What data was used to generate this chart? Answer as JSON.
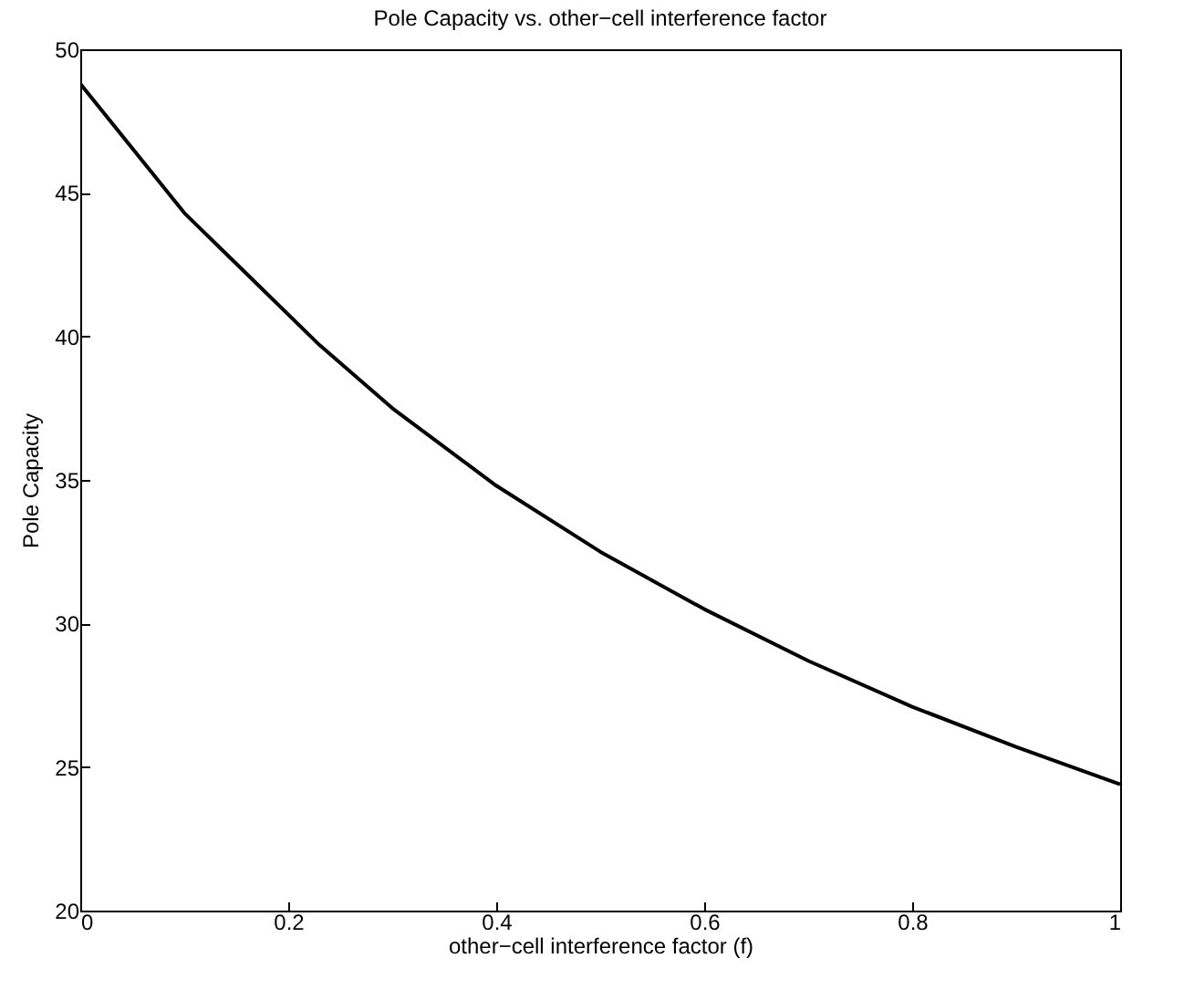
{
  "chart_data": {
    "type": "line",
    "title": "Pole Capacity vs. other−cell interference factor",
    "xlabel": "other−cell interference factor (f)",
    "ylabel": "Pole Capacity",
    "x": [
      0,
      0.1,
      0.23,
      0.3,
      0.4,
      0.5,
      0.6,
      0.7,
      0.8,
      0.9,
      1
    ],
    "series": [
      {
        "color": "#000000",
        "values": [
          48.8,
          44.3,
          39.7,
          37.5,
          34.8,
          32.5,
          30.5,
          28.7,
          27.1,
          25.7,
          24.4
        ]
      }
    ],
    "xlim": [
      0,
      1
    ],
    "xticks": [
      0,
      0.2,
      0.4,
      0.6,
      0.8,
      1
    ],
    "ylim": [
      20,
      50
    ],
    "yticks": [
      20,
      25,
      30,
      35,
      40,
      45,
      50
    ],
    "grid": false,
    "marker": "none",
    "line_style": "solid"
  }
}
